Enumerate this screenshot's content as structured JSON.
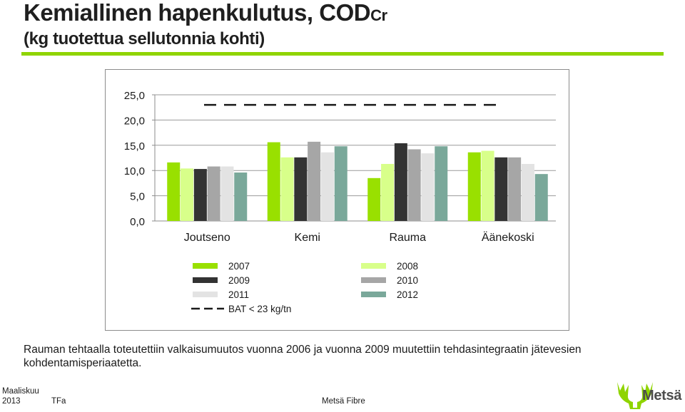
{
  "slide": {
    "title_main": "Kemiallinen hapenkulutus, COD",
    "title_sub": "Cr",
    "subtitle": "(kg tuotettua sellutonnia kohti)",
    "caption_line1": "Rauman tehtaalla toteutettiin valkaisumuutos vuonna 2006  ja vuonna 2009 muutettiin tehdasintegraatin jätevesien",
    "caption_line2": "kohdentamisperiaatetta."
  },
  "footer": {
    "date_line1": "Maaliskuu",
    "date_line2": "2013",
    "author": "TFa",
    "company": "Metsä Fibre",
    "logo_text": "Metsä"
  },
  "colors": {
    "accent_green": "#8fd400",
    "series": [
      "#99e000",
      "#d8ff8a",
      "#333333",
      "#a6a6a6",
      "#e3e3e3",
      "#7aa89a"
    ]
  },
  "chart_data": {
    "type": "bar",
    "categories": [
      "Joutseno",
      "Kemi",
      "Rauma",
      "Äänekoski"
    ],
    "series": [
      {
        "name": "2007",
        "values": [
          11.6,
          15.6,
          8.5,
          13.6
        ]
      },
      {
        "name": "2008",
        "values": [
          10.4,
          12.6,
          11.3,
          13.9
        ]
      },
      {
        "name": "2009",
        "values": [
          10.3,
          12.6,
          15.4,
          12.6
        ]
      },
      {
        "name": "2010",
        "values": [
          10.8,
          15.7,
          14.2,
          12.6
        ]
      },
      {
        "name": "2011",
        "values": [
          10.8,
          13.6,
          13.4,
          11.3
        ]
      },
      {
        "name": "2012",
        "values": [
          9.6,
          14.8,
          14.8,
          9.3
        ]
      }
    ],
    "reference_line": {
      "name": "BAT < 23 kg/tn",
      "value": 23,
      "style": "dashed"
    },
    "ylim": [
      0,
      25
    ],
    "yticks": [
      "0,0",
      "5,0",
      "10,0",
      "15,0",
      "20,0",
      "25,0"
    ],
    "grid": true,
    "legend_position": "bottom"
  }
}
